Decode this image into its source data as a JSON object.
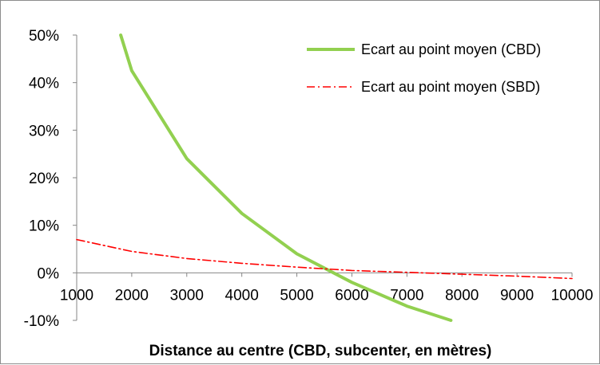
{
  "chart_data": {
    "type": "line",
    "title": "",
    "xlabel": "Distance au centre (CBD, subcenter, en mètres)",
    "ylabel": "",
    "xlim": [
      1000,
      10000
    ],
    "ylim": [
      -0.1,
      0.5
    ],
    "x_ticks": [
      1000,
      2000,
      3000,
      4000,
      5000,
      6000,
      7000,
      8000,
      9000,
      10000
    ],
    "x_tick_labels": [
      "1000",
      "2000",
      "3000",
      "4000",
      "5000",
      "6000",
      "7000",
      "8000",
      "9000",
      "10000"
    ],
    "y_ticks": [
      -0.1,
      0.0,
      0.1,
      0.2,
      0.3,
      0.4,
      0.5
    ],
    "y_tick_labels": [
      "-10%",
      "0%",
      "10%",
      "20%",
      "30%",
      "40%",
      "50%"
    ],
    "grid": false,
    "legend_position": "top-right",
    "series": [
      {
        "name": "Ecart au point moyen (CBD)",
        "color": "#92d050",
        "line_style": "solid",
        "x": [
          1800,
          2000,
          3000,
          4000,
          5000,
          6000,
          7000,
          7800
        ],
        "y": [
          0.5,
          0.425,
          0.24,
          0.125,
          0.04,
          -0.02,
          -0.07,
          -0.1
        ]
      },
      {
        "name": "Ecart au point moyen (SBD)",
        "color": "#ff0000",
        "line_style": "dash-dot",
        "x": [
          1000,
          2000,
          3000,
          4000,
          5000,
          6000,
          7000,
          8000,
          9000,
          10000
        ],
        "y": [
          0.07,
          0.045,
          0.03,
          0.02,
          0.012,
          0.005,
          0.001,
          -0.003,
          -0.007,
          -0.012
        ]
      }
    ]
  }
}
